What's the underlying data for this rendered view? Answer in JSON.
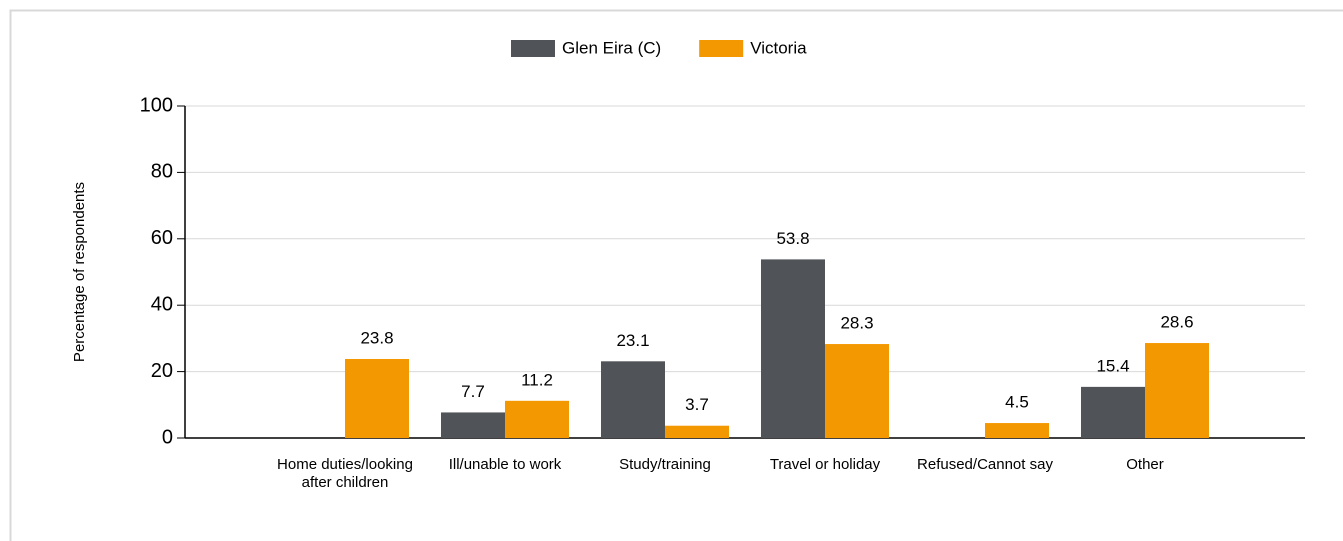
{
  "chart_data": {
    "type": "bar",
    "y_label": "Percentage of respondents",
    "categories": [
      "Home duties/looking after children",
      "Ill/unable to work",
      "Study/training",
      "Travel or holiday",
      "Refused/Cannot say",
      "Other"
    ],
    "series": [
      {
        "name": "Glen Eira (C)",
        "color": "#505458",
        "values": [
          null,
          7.7,
          23.1,
          53.8,
          null,
          15.4
        ]
      },
      {
        "name": "Victoria",
        "color": "#f39800",
        "values": [
          23.8,
          11.2,
          3.7,
          28.3,
          4.5,
          28.6
        ]
      }
    ],
    "ylim": [
      0,
      100
    ],
    "yticks": [
      0,
      20,
      40,
      60,
      80,
      100
    ],
    "grid": true,
    "legend": "top"
  }
}
